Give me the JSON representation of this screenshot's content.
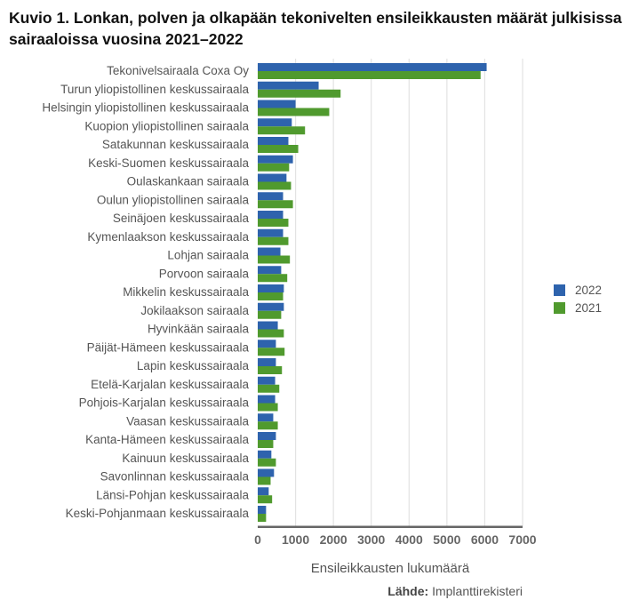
{
  "chart_data": {
    "type": "bar",
    "orientation": "horizontal",
    "title": "Kuvio 1. Lonkan, polven ja olkapään tekonivelten ensileikkausten määrät julkisissa sairaaloissa vuosina 2021–2022",
    "xlabel": "Ensileikkausten lukumäärä",
    "ylabel": "",
    "xlim": [
      0,
      7000
    ],
    "xticks": [
      "0",
      "1000",
      "2000",
      "3000",
      "4000",
      "5000",
      "6000",
      "7000"
    ],
    "grid": true,
    "legend": "right",
    "categories": [
      "Tekonivelsairaala Coxa Oy",
      "Turun yliopistollinen keskussairaala",
      "Helsingin yliopistollinen keskussairaala",
      "Kuopion yliopistollinen sairaala",
      "Satakunnan keskussairaala",
      "Keski-Suomen keskussairaala",
      "Oulaskankaan sairaala",
      "Oulun yliopistollinen sairaala",
      "Seinäjoen keskussairaala",
      "Kymenlaakson keskussairaala",
      "Lohjan sairaala",
      "Porvoon sairaala",
      "Mikkelin keskussairaala",
      "Jokilaakson sairaala",
      "Hyvinkään sairaala",
      "Päijät-Hämeen keskussairaala",
      "Lapin keskussairaala",
      "Etelä-Karjalan keskussairaala",
      "Pohjois-Karjalan keskussairaala",
      "Vaasan keskussairaala",
      "Kanta-Hämeen keskussairaala",
      "Kainuun keskussairaala",
      "Savonlinnan keskussairaala",
      "Länsi-Pohjan keskussairaala",
      "Keski-Pohjanmaan keskussairaala"
    ],
    "series": [
      {
        "name": "2022",
        "color": "#2e63ad",
        "values": [
          6050,
          1610,
          1000,
          900,
          810,
          930,
          760,
          670,
          670,
          670,
          600,
          620,
          690,
          690,
          530,
          480,
          480,
          460,
          460,
          410,
          480,
          360,
          430,
          290,
          220
        ]
      },
      {
        "name": "2021",
        "color": "#509a2e",
        "values": [
          5890,
          2190,
          1890,
          1250,
          1070,
          830,
          880,
          930,
          810,
          810,
          850,
          780,
          670,
          620,
          690,
          710,
          640,
          570,
          530,
          530,
          410,
          480,
          340,
          380,
          220
        ]
      }
    ]
  },
  "source": {
    "label": "Lähde:",
    "value": "Implanttirekisteri"
  }
}
